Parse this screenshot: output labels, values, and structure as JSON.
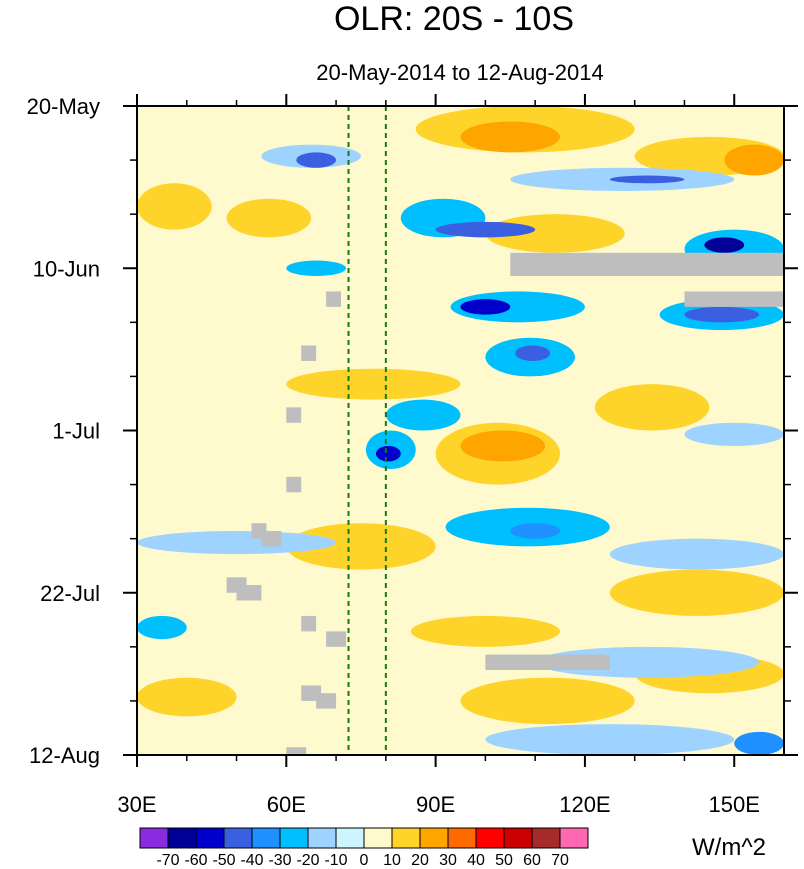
{
  "chart_data": {
    "type": "heatmap",
    "title": "OLR: 20S - 10S",
    "subtitle": "20-May-2014 to 12-Aug-2014",
    "x_ticks": [
      {
        "value": 30,
        "label": "30E"
      },
      {
        "value": 60,
        "label": "60E"
      },
      {
        "value": 90,
        "label": "90E"
      },
      {
        "value": 120,
        "label": "120E"
      },
      {
        "value": 150,
        "label": "150E"
      }
    ],
    "xlim": [
      30,
      160
    ],
    "y_ticks": [
      {
        "day": 0,
        "label": "20-May"
      },
      {
        "day": 21,
        "label": "10-Jun"
      },
      {
        "day": 42,
        "label": "1-Jul"
      },
      {
        "day": 63,
        "label": "22-Jul"
      },
      {
        "day": 84,
        "label": "12-Aug"
      }
    ],
    "ylim_days": [
      0,
      84
    ],
    "reference_lines_lon": [
      72.5,
      80
    ],
    "colorbar": {
      "unit": "W/m^2",
      "levels": [
        "-70",
        "-60",
        "-50",
        "-40",
        "-30",
        "-20",
        "-10",
        "0",
        "10",
        "20",
        "30",
        "40",
        "50",
        "60",
        "70"
      ],
      "colors": [
        "#8a2be2",
        "#000099",
        "#0000cd",
        "#3a5fe0",
        "#1e90ff",
        "#00bfff",
        "#9fd3ff",
        "#ccf5ff",
        "#fffacd",
        "#ffd42a",
        "#ffa500",
        "#ff6a00",
        "#ff0000",
        "#cc0000",
        "#a52a2a",
        "#ff69b4"
      ]
    },
    "features": [
      {
        "lon0": 40,
        "lon1": 160,
        "day0": 0,
        "day1": 84,
        "value": 5
      },
      {
        "lon0": 30,
        "lon1": 72,
        "day0": 0,
        "day1": 84,
        "value": 3
      },
      {
        "lon0": 30,
        "lon1": 45,
        "day0": 10,
        "day1": 16,
        "value": 15
      },
      {
        "lon0": 48,
        "lon1": 65,
        "day0": 12,
        "day1": 17,
        "value": 18
      },
      {
        "lon0": 86,
        "lon1": 130,
        "day0": 0,
        "day1": 6,
        "value": 18
      },
      {
        "lon0": 95,
        "lon1": 115,
        "day0": 2,
        "day1": 6,
        "value": 28
      },
      {
        "lon0": 100,
        "lon1": 128,
        "day0": 14,
        "day1": 19,
        "value": 15
      },
      {
        "lon0": 130,
        "lon1": 160,
        "day0": 4,
        "day1": 9,
        "value": 16
      },
      {
        "lon0": 148,
        "lon1": 160,
        "day0": 5,
        "day1": 9,
        "value": 28
      },
      {
        "lon0": 90,
        "lon1": 115,
        "day0": 41,
        "day1": 49,
        "value": 16
      },
      {
        "lon0": 95,
        "lon1": 112,
        "day0": 42,
        "day1": 46,
        "value": 22
      },
      {
        "lon0": 60,
        "lon1": 95,
        "day0": 34,
        "day1": 38,
        "value": 12
      },
      {
        "lon0": 122,
        "lon1": 145,
        "day0": 36,
        "day1": 42,
        "value": 12
      },
      {
        "lon0": 60,
        "lon1": 90,
        "day0": 54,
        "day1": 60,
        "value": 14
      },
      {
        "lon0": 125,
        "lon1": 160,
        "day0": 60,
        "day1": 66,
        "value": 12
      },
      {
        "lon0": 85,
        "lon1": 115,
        "day0": 66,
        "day1": 70,
        "value": 12
      },
      {
        "lon0": 95,
        "lon1": 130,
        "day0": 74,
        "day1": 80,
        "value": 14
      },
      {
        "lon0": 130,
        "lon1": 160,
        "day0": 71,
        "day1": 76,
        "value": 13
      },
      {
        "lon0": 30,
        "lon1": 50,
        "day0": 74,
        "day1": 79,
        "value": 12
      },
      {
        "lon0": 55,
        "lon1": 75,
        "day0": 5,
        "day1": 8,
        "value": -15
      },
      {
        "lon0": 62,
        "lon1": 70,
        "day0": 6,
        "day1": 8,
        "value": -45
      },
      {
        "lon0": 83,
        "lon1": 100,
        "day0": 12,
        "day1": 17,
        "value": -30
      },
      {
        "lon0": 90,
        "lon1": 110,
        "day0": 15,
        "day1": 17,
        "value": -45
      },
      {
        "lon0": 105,
        "lon1": 150,
        "day0": 8,
        "day1": 11,
        "value": -20
      },
      {
        "lon0": 125,
        "lon1": 140,
        "day0": 9,
        "day1": 10,
        "value": -45
      },
      {
        "lon0": 140,
        "lon1": 160,
        "day0": 16,
        "day1": 21,
        "value": -30
      },
      {
        "lon0": 144,
        "lon1": 152,
        "day0": 17,
        "day1": 19,
        "value": -65
      },
      {
        "lon0": 60,
        "lon1": 72,
        "day0": 20,
        "day1": 22,
        "value": -30
      },
      {
        "lon0": 93,
        "lon1": 120,
        "day0": 24,
        "day1": 28,
        "value": -30
      },
      {
        "lon0": 95,
        "lon1": 105,
        "day0": 25,
        "day1": 27,
        "value": -55
      },
      {
        "lon0": 135,
        "lon1": 160,
        "day0": 25,
        "day1": 29,
        "value": -30
      },
      {
        "lon0": 140,
        "lon1": 155,
        "day0": 26,
        "day1": 28,
        "value": -50
      },
      {
        "lon0": 100,
        "lon1": 118,
        "day0": 30,
        "day1": 35,
        "value": -25
      },
      {
        "lon0": 106,
        "lon1": 113,
        "day0": 31,
        "day1": 33,
        "value": -45
      },
      {
        "lon0": 80,
        "lon1": 95,
        "day0": 38,
        "day1": 42,
        "value": -25
      },
      {
        "lon0": 76,
        "lon1": 86,
        "day0": 42,
        "day1": 47,
        "value": -30
      },
      {
        "lon0": 78,
        "lon1": 83,
        "day0": 44,
        "day1": 46,
        "value": -60
      },
      {
        "lon0": 92,
        "lon1": 125,
        "day0": 52,
        "day1": 57,
        "value": -25
      },
      {
        "lon0": 105,
        "lon1": 115,
        "day0": 54,
        "day1": 56,
        "value": -40
      },
      {
        "lon0": 30,
        "lon1": 70,
        "day0": 55,
        "day1": 58,
        "value": -18
      },
      {
        "lon0": 125,
        "lon1": 160,
        "day0": 56,
        "day1": 60,
        "value": -15
      },
      {
        "lon0": 140,
        "lon1": 160,
        "day0": 41,
        "day1": 44,
        "value": -18
      },
      {
        "lon0": 110,
        "lon1": 155,
        "day0": 70,
        "day1": 74,
        "value": -15
      },
      {
        "lon0": 100,
        "lon1": 150,
        "day0": 80,
        "day1": 84,
        "value": -15
      },
      {
        "lon0": 150,
        "lon1": 160,
        "day0": 81,
        "day1": 84,
        "value": -40
      },
      {
        "lon0": 30,
        "lon1": 40,
        "day0": 66,
        "day1": 69,
        "value": -25
      }
    ],
    "missing_data": [
      {
        "lon0": 105,
        "lon1": 160,
        "day0": 19,
        "day1": 22
      },
      {
        "lon0": 140,
        "lon1": 160,
        "day0": 24,
        "day1": 26
      },
      {
        "lon0": 68,
        "lon1": 71,
        "day0": 24,
        "day1": 26
      },
      {
        "lon0": 63,
        "lon1": 66,
        "day0": 31,
        "day1": 33
      },
      {
        "lon0": 60,
        "lon1": 63,
        "day0": 39,
        "day1": 41
      },
      {
        "lon0": 60,
        "lon1": 63,
        "day0": 48,
        "day1": 50
      },
      {
        "lon0": 53,
        "lon1": 56,
        "day0": 54,
        "day1": 56
      },
      {
        "lon0": 55,
        "lon1": 59,
        "day0": 55,
        "day1": 57
      },
      {
        "lon0": 48,
        "lon1": 52,
        "day0": 61,
        "day1": 63
      },
      {
        "lon0": 50,
        "lon1": 55,
        "day0": 62,
        "day1": 64
      },
      {
        "lon0": 63,
        "lon1": 66,
        "day0": 66,
        "day1": 68
      },
      {
        "lon0": 68,
        "lon1": 72,
        "day0": 68,
        "day1": 70
      },
      {
        "lon0": 100,
        "lon1": 125,
        "day0": 71,
        "day1": 73
      },
      {
        "lon0": 63,
        "lon1": 67,
        "day0": 75,
        "day1": 77
      },
      {
        "lon0": 66,
        "lon1": 70,
        "day0": 76,
        "day1": 78
      },
      {
        "lon0": 60,
        "lon1": 64,
        "day0": 83,
        "day1": 84
      }
    ]
  }
}
